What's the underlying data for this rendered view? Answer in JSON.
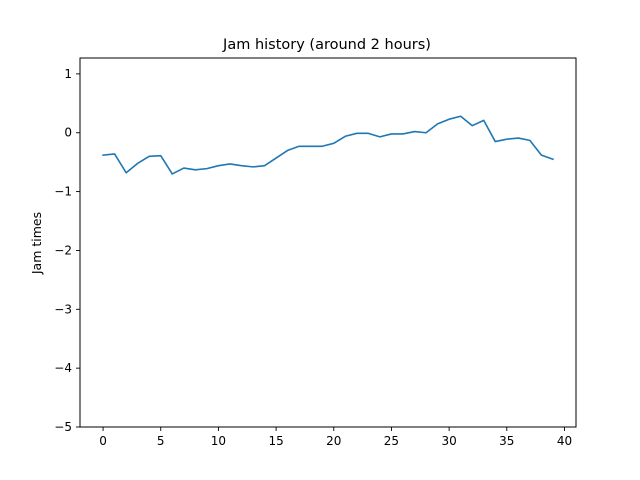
{
  "chart_data": {
    "type": "line",
    "title": "Jam history (around 2 hours)",
    "xlabel": "",
    "ylabel": "Jam times",
    "xlim": [
      -2,
      41
    ],
    "ylim": [
      -5,
      1.27
    ],
    "xticks": [
      0,
      5,
      10,
      15,
      20,
      25,
      30,
      35,
      40
    ],
    "yticks": [
      -5,
      -4,
      -3,
      -2,
      -1,
      0,
      1
    ],
    "ytick_labels": [
      "−5",
      "−4",
      "−3",
      "−2",
      "−1",
      "0",
      "1"
    ],
    "grid": false,
    "line_color": "#1f77b4",
    "x": [
      0,
      1,
      2,
      3,
      4,
      5,
      6,
      7,
      8,
      9,
      10,
      11,
      12,
      13,
      14,
      15,
      16,
      17,
      18,
      19,
      20,
      21,
      22,
      23,
      24,
      25,
      26,
      27,
      28,
      29,
      30,
      31,
      32,
      33,
      34,
      35,
      36,
      37,
      38,
      39
    ],
    "y": [
      -0.38,
      -0.36,
      -0.68,
      -0.52,
      -0.4,
      -0.39,
      -0.7,
      -0.6,
      -0.63,
      -0.61,
      -0.56,
      -0.53,
      -0.56,
      -0.58,
      -0.56,
      -0.43,
      -0.3,
      -0.23,
      -0.23,
      -0.23,
      -0.18,
      -0.06,
      -0.01,
      -0.01,
      -0.07,
      -0.02,
      -0.02,
      0.02,
      0.0,
      0.15,
      0.23,
      0.28,
      0.12,
      0.21,
      -0.15,
      -0.11,
      -0.09,
      -0.13,
      -0.38,
      -0.45
    ]
  }
}
